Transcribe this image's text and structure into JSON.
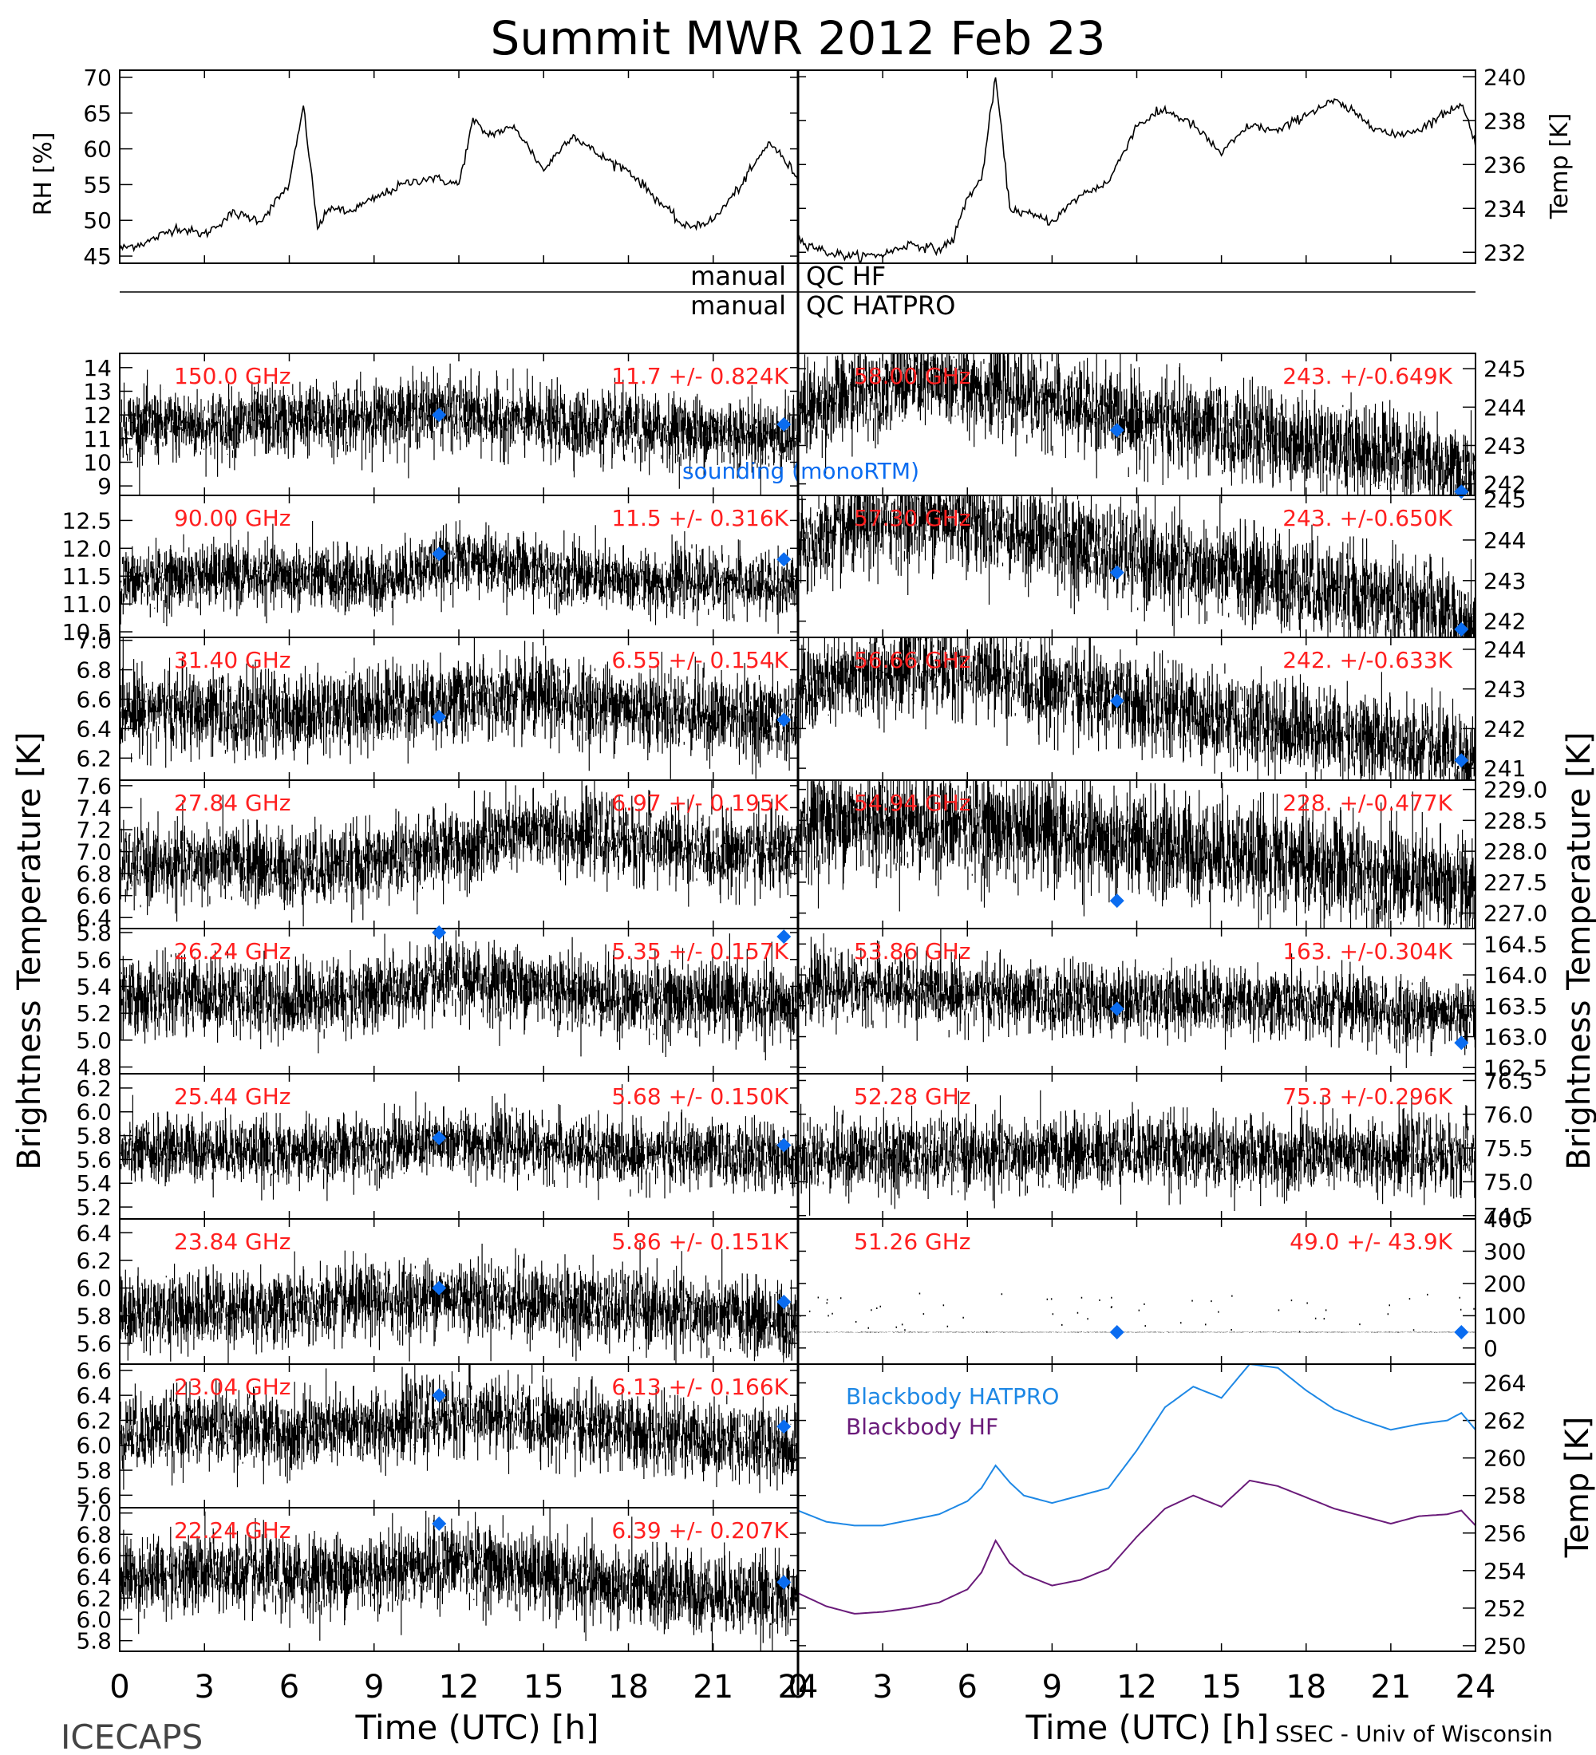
{
  "title": "Summit MWR 2012 Feb 23",
  "footer": {
    "left": "ICECAPS",
    "right": "SSEC - Univ of Wisconsin"
  },
  "qc": {
    "hf": {
      "left": "manual",
      "right": "QC HF"
    },
    "hatpro": {
      "left": "manual",
      "right": "QC HATPRO"
    }
  },
  "axes_titles": {
    "left_tb": "Brightness Temperature [K]",
    "right_tb": "Brightness Temperature [K]",
    "rh": "RH [%]",
    "temp_top": "Temp [K]",
    "temp_bottom": "Temp [K]",
    "xlabel": "Time (UTC) [h]"
  },
  "colors": {
    "label_red": "#ff2020",
    "sounding_blue": "#0a6cf0",
    "hatpro_blue": "#1e88e5",
    "hf_purple": "#6a1b7a",
    "trace": "#000000"
  },
  "sounding_label": "sounding (monoRTM)",
  "x_ticks": [
    "0",
    "3",
    "6",
    "9",
    "12",
    "15",
    "18",
    "21",
    "24"
  ],
  "chart_data": [
    {
      "type": "line",
      "id": "rh",
      "side": "left",
      "ylabel": "RH [%]",
      "ylim": [
        44,
        71
      ],
      "yticks": [
        "45",
        "50",
        "55",
        "60",
        "65",
        "70"
      ],
      "x": [
        0,
        1,
        2,
        3,
        4,
        5,
        6,
        6.5,
        7,
        7.5,
        8,
        9,
        10,
        11,
        12,
        12.5,
        13,
        14,
        15,
        16,
        17,
        18,
        19,
        20,
        21,
        22,
        23,
        24
      ],
      "y": [
        46,
        47,
        49,
        48,
        51,
        50,
        55,
        66,
        49,
        52,
        51,
        53,
        55,
        56,
        55,
        64,
        62,
        63,
        57,
        62,
        59,
        57,
        53,
        49,
        50,
        55,
        61,
        56
      ]
    },
    {
      "type": "line",
      "id": "temp_top",
      "side": "right",
      "ylabel": "Temp [K]",
      "ylim": [
        231.5,
        240.3
      ],
      "yticks": [
        "232",
        "234",
        "236",
        "238",
        "240"
      ],
      "x": [
        0,
        1,
        2,
        3,
        4,
        5,
        5.5,
        6,
        6.5,
        7,
        7.5,
        8,
        9,
        10,
        11,
        11.5,
        12,
        13,
        14,
        15,
        16,
        17,
        18,
        19,
        20,
        21,
        22,
        23,
        23.5,
        24
      ],
      "y": [
        232.6,
        232,
        231.8,
        231.9,
        232.4,
        232.1,
        232.6,
        234.5,
        235.3,
        240,
        234,
        233.8,
        233.4,
        234.6,
        235.2,
        236.5,
        237.8,
        238.5,
        237.8,
        236.5,
        237.8,
        237.5,
        238.3,
        238.9,
        238.1,
        237.3,
        237.6,
        238.4,
        238.8,
        237.0
      ]
    },
    {
      "type": "scatter",
      "id": "ch150",
      "side": "left",
      "label": "150.0 GHz",
      "stat": "11.7 +/- 0.824K",
      "ylim": [
        8.6,
        14.6
      ],
      "yticks": [
        "9",
        "10",
        "11",
        "12",
        "13",
        "14"
      ],
      "x": [
        0,
        3,
        6,
        9,
        11.3,
        12,
        15,
        18,
        21,
        24
      ],
      "y": [
        11.6,
        11.5,
        11.8,
        11.9,
        12.3,
        12.0,
        11.7,
        11.4,
        11.3,
        11.0
      ],
      "sounding": [
        {
          "x": 11.3,
          "y": 12.0
        },
        {
          "x": 23.5,
          "y": 11.6
        }
      ]
    },
    {
      "type": "scatter",
      "id": "ch90",
      "side": "left",
      "label": "90.00 GHz",
      "stat": "11.5 +/- 0.316K",
      "ylim": [
        10.4,
        12.95
      ],
      "yticks": [
        "10.5",
        "11.0",
        "11.5",
        "12.0",
        "12.5"
      ],
      "x": [
        0,
        3,
        6,
        9,
        12,
        15,
        18,
        21,
        24
      ],
      "y": [
        11.4,
        11.5,
        11.5,
        11.4,
        11.8,
        11.6,
        11.4,
        11.4,
        11.3
      ],
      "sounding": [
        {
          "x": 11.3,
          "y": 11.9
        },
        {
          "x": 23.5,
          "y": 11.8
        }
      ]
    },
    {
      "type": "scatter",
      "id": "ch3140",
      "side": "left",
      "label": "31.40 GHz",
      "stat": "6.55 +/- 0.154K",
      "ylim": [
        6.05,
        7.02
      ],
      "yticks": [
        "6.2",
        "6.4",
        "6.6",
        "6.8",
        "7.0"
      ],
      "x": [
        0,
        3,
        6,
        9,
        12,
        15,
        18,
        21,
        24
      ],
      "y": [
        6.55,
        6.5,
        6.5,
        6.55,
        6.6,
        6.6,
        6.55,
        6.5,
        6.45
      ],
      "sounding": [
        {
          "x": 11.3,
          "y": 6.48
        },
        {
          "x": 23.5,
          "y": 6.46
        }
      ]
    },
    {
      "type": "scatter",
      "id": "ch2784",
      "side": "left",
      "label": "27.84 GHz",
      "stat": "6.97 +/- 0.195K",
      "ylim": [
        6.3,
        7.65
      ],
      "yticks": [
        "6.4",
        "6.6",
        "6.8",
        "7.0",
        "7.2",
        "7.4",
        "7.6"
      ],
      "x": [
        0,
        3,
        6,
        9,
        12,
        15,
        18,
        21,
        24
      ],
      "y": [
        6.85,
        6.9,
        6.85,
        6.9,
        7.05,
        7.2,
        7.1,
        7.0,
        7.0
      ],
      "sounding": []
    },
    {
      "type": "scatter",
      "id": "ch2624",
      "side": "left",
      "label": "26.24 GHz",
      "stat": "5.35 +/- 0.157K",
      "ylim": [
        4.75,
        5.83
      ],
      "yticks": [
        "4.8",
        "5.0",
        "5.2",
        "5.4",
        "5.6",
        "5.8"
      ],
      "x": [
        0,
        3,
        6,
        9,
        12,
        15,
        18,
        21,
        24
      ],
      "y": [
        5.3,
        5.35,
        5.3,
        5.35,
        5.45,
        5.4,
        5.3,
        5.3,
        5.25
      ],
      "sounding": [
        {
          "x": 11.3,
          "y": 5.8
        },
        {
          "x": 23.5,
          "y": 5.77
        }
      ]
    },
    {
      "type": "scatter",
      "id": "ch2544",
      "side": "left",
      "label": "25.44 GHz",
      "stat": "5.68 +/- 0.150K",
      "ylim": [
        5.1,
        6.32
      ],
      "yticks": [
        "5.2",
        "5.4",
        "5.6",
        "5.8",
        "6.0",
        "6.2"
      ],
      "x": [
        0,
        3,
        6,
        9,
        12,
        15,
        18,
        21,
        24
      ],
      "y": [
        5.65,
        5.7,
        5.65,
        5.7,
        5.75,
        5.7,
        5.65,
        5.65,
        5.6
      ],
      "sounding": [
        {
          "x": 11.3,
          "y": 5.78
        },
        {
          "x": 23.5,
          "y": 5.72
        }
      ]
    },
    {
      "type": "scatter",
      "id": "ch2384",
      "side": "left",
      "label": "23.84 GHz",
      "stat": "5.86 +/- 0.151K",
      "ylim": [
        5.45,
        6.5
      ],
      "yticks": [
        "5.6",
        "5.8",
        "6.0",
        "6.2",
        "6.4"
      ],
      "x": [
        0,
        3,
        6,
        9,
        12,
        15,
        18,
        21,
        24
      ],
      "y": [
        5.82,
        5.85,
        5.85,
        5.9,
        5.95,
        5.9,
        5.85,
        5.8,
        5.75
      ],
      "sounding": [
        {
          "x": 11.3,
          "y": 6.0
        },
        {
          "x": 23.5,
          "y": 5.9
        }
      ]
    },
    {
      "type": "scatter",
      "id": "ch2304",
      "side": "left",
      "label": "23.04 GHz",
      "stat": "6.13 +/- 0.166K",
      "ylim": [
        5.5,
        6.65
      ],
      "yticks": [
        "5.6",
        "5.8",
        "6.0",
        "6.2",
        "6.4",
        "6.6"
      ],
      "x": [
        0,
        3,
        6,
        9,
        12,
        15,
        18,
        21,
        24
      ],
      "y": [
        6.1,
        6.15,
        6.1,
        6.15,
        6.25,
        6.2,
        6.1,
        6.05,
        6.0
      ],
      "sounding": [
        {
          "x": 11.3,
          "y": 6.4
        },
        {
          "x": 23.5,
          "y": 6.15
        }
      ]
    },
    {
      "type": "scatter",
      "id": "ch2224",
      "side": "left",
      "label": "22.24 GHz",
      "stat": "6.39 +/- 0.207K",
      "ylim": [
        5.7,
        7.05
      ],
      "yticks": [
        "5.8",
        "6.0",
        "6.2",
        "6.4",
        "6.6",
        "6.8",
        "7.0"
      ],
      "x": [
        0,
        3,
        6,
        9,
        12,
        15,
        18,
        21,
        24
      ],
      "y": [
        6.4,
        6.45,
        6.4,
        6.45,
        6.55,
        6.4,
        6.3,
        6.25,
        6.2
      ],
      "sounding": [
        {
          "x": 11.3,
          "y": 6.9
        },
        {
          "x": 23.5,
          "y": 6.35
        }
      ]
    },
    {
      "type": "scatter",
      "id": "ch5800",
      "side": "right",
      "label": "58.00 GHz",
      "stat": "243. +/-0.649K",
      "ylim": [
        241.7,
        245.4
      ],
      "yticks": [
        "242",
        "243",
        "244",
        "245"
      ],
      "x": [
        0,
        2,
        4,
        6,
        8,
        10,
        12,
        14,
        16,
        18,
        20,
        22,
        24
      ],
      "y": [
        243.8,
        244.4,
        244.7,
        244.6,
        244.3,
        244.0,
        243.7,
        243.5,
        243.3,
        243.1,
        242.9,
        242.7,
        242.1
      ],
      "sounding": [
        {
          "x": 11.3,
          "y": 243.4
        },
        {
          "x": 23.5,
          "y": 241.8
        }
      ]
    },
    {
      "type": "scatter",
      "id": "ch5730",
      "side": "right",
      "label": "57.30 GHz",
      "stat": "243. +/-0.650K",
      "ylim": [
        241.6,
        245.1
      ],
      "yticks": [
        "242",
        "243",
        "244",
        "245"
      ],
      "x": [
        0,
        2,
        4,
        6,
        8,
        10,
        12,
        14,
        16,
        18,
        20,
        22,
        24
      ],
      "y": [
        243.8,
        244.3,
        244.6,
        244.5,
        244.2,
        243.9,
        243.5,
        243.3,
        243.1,
        242.9,
        242.6,
        242.4,
        241.9
      ],
      "sounding": [
        {
          "x": 11.3,
          "y": 243.2
        },
        {
          "x": 23.5,
          "y": 241.8
        }
      ]
    },
    {
      "type": "scatter",
      "id": "ch5686",
      "side": "right",
      "label": "56.66 GHz",
      "stat": "242. +/-0.633K",
      "ylim": [
        240.7,
        244.3
      ],
      "yticks": [
        "241",
        "242",
        "243",
        "244"
      ],
      "x": [
        0,
        2,
        4,
        6,
        8,
        10,
        12,
        14,
        16,
        18,
        20,
        22,
        24
      ],
      "y": [
        242.9,
        243.3,
        243.6,
        243.5,
        243.2,
        242.9,
        242.6,
        242.4,
        242.2,
        242.0,
        241.8,
        241.5,
        241.1
      ],
      "sounding": [
        {
          "x": 11.3,
          "y": 242.7
        },
        {
          "x": 23.5,
          "y": 241.2
        }
      ]
    },
    {
      "type": "scatter",
      "id": "ch5494",
      "side": "right",
      "label": "54.94 GHz",
      "stat": "228. +/-0.477K",
      "ylim": [
        226.75,
        229.15
      ],
      "yticks": [
        "227.0",
        "227.5",
        "228.0",
        "228.5",
        "229.0"
      ],
      "x": [
        0,
        3,
        6,
        9,
        12,
        15,
        18,
        21,
        24
      ],
      "y": [
        228.5,
        228.5,
        228.4,
        228.3,
        228.1,
        228.0,
        227.8,
        227.6,
        227.4
      ],
      "sounding": [
        {
          "x": 11.3,
          "y": 227.2
        }
      ]
    },
    {
      "type": "scatter",
      "id": "ch5386",
      "side": "right",
      "label": "53.86 GHz",
      "stat": "163. +/-0.304K",
      "ylim": [
        162.4,
        164.75
      ],
      "yticks": [
        "162.5",
        "163.0",
        "163.5",
        "164.0",
        "164.5"
      ],
      "x": [
        0,
        3,
        6,
        9,
        12,
        15,
        18,
        21,
        24
      ],
      "y": [
        163.8,
        163.8,
        163.7,
        163.6,
        163.6,
        163.6,
        163.5,
        163.4,
        163.4
      ],
      "sounding": [
        {
          "x": 11.3,
          "y": 163.45
        },
        {
          "x": 23.5,
          "y": 162.9
        }
      ]
    },
    {
      "type": "scatter",
      "id": "ch5228",
      "side": "right",
      "label": "52.28 GHz",
      "stat": "75.3 +/-0.296K",
      "ylim": [
        74.45,
        76.6
      ],
      "yticks": [
        "74.5",
        "75.0",
        "75.5",
        "76.0",
        "76.5"
      ],
      "x": [
        0,
        3,
        6,
        9,
        12,
        15,
        18,
        21,
        24
      ],
      "y": [
        75.4,
        75.4,
        75.4,
        75.4,
        75.5,
        75.4,
        75.4,
        75.4,
        75.4
      ],
      "sounding": []
    },
    {
      "type": "scatter",
      "id": "ch5126",
      "side": "right",
      "label": "51.26 GHz",
      "stat": "49.0 +/- 43.9K",
      "ylim": [
        -50,
        400
      ],
      "yticks": [
        "0",
        "100",
        "200",
        "300",
        "400"
      ],
      "x": [
        0,
        3,
        6,
        9,
        12,
        15,
        18,
        21,
        24
      ],
      "y": [
        49,
        49,
        49,
        49,
        49,
        49,
        49,
        49,
        49
      ],
      "sounding": [
        {
          "x": 11.3,
          "y": 49
        },
        {
          "x": 23.5,
          "y": 49
        }
      ]
    },
    {
      "type": "line",
      "id": "blackbody",
      "side": "right",
      "ylabel": "Temp [K]",
      "ylim": [
        249.7,
        265
      ],
      "yticks": [
        "250",
        "252",
        "254",
        "256",
        "258",
        "260",
        "262",
        "264"
      ],
      "series": [
        {
          "name": "Blackbody HATPRO",
          "x": [
            0,
            1,
            2,
            3,
            4,
            5,
            6,
            6.5,
            7,
            7.5,
            8,
            9,
            10,
            11,
            12,
            13,
            14,
            15,
            16,
            17,
            18,
            19,
            20,
            21,
            22,
            23,
            23.5,
            24
          ],
          "y": [
            257.2,
            256.6,
            256.4,
            256.4,
            256.7,
            257.0,
            257.7,
            258.4,
            259.6,
            258.7,
            258.0,
            257.6,
            258.0,
            258.4,
            260.4,
            262.7,
            263.8,
            263.2,
            265.0,
            264.8,
            263.6,
            262.6,
            262.0,
            261.5,
            261.8,
            262.0,
            262.4,
            261.5
          ]
        },
        {
          "name": "Blackbody HF",
          "x": [
            0,
            1,
            2,
            3,
            4,
            5,
            6,
            6.5,
            7,
            7.5,
            8,
            9,
            10,
            11,
            12,
            13,
            14,
            15,
            16,
            17,
            18,
            19,
            20,
            21,
            22,
            23,
            23.5,
            24
          ],
          "y": [
            252.8,
            252.1,
            251.7,
            251.8,
            252.0,
            252.3,
            253.0,
            253.9,
            255.6,
            254.4,
            253.8,
            253.2,
            253.5,
            254.1,
            255.8,
            257.3,
            258.0,
            257.4,
            258.8,
            258.5,
            257.9,
            257.3,
            256.9,
            256.5,
            256.9,
            257.0,
            257.2,
            256.4
          ]
        }
      ]
    }
  ]
}
